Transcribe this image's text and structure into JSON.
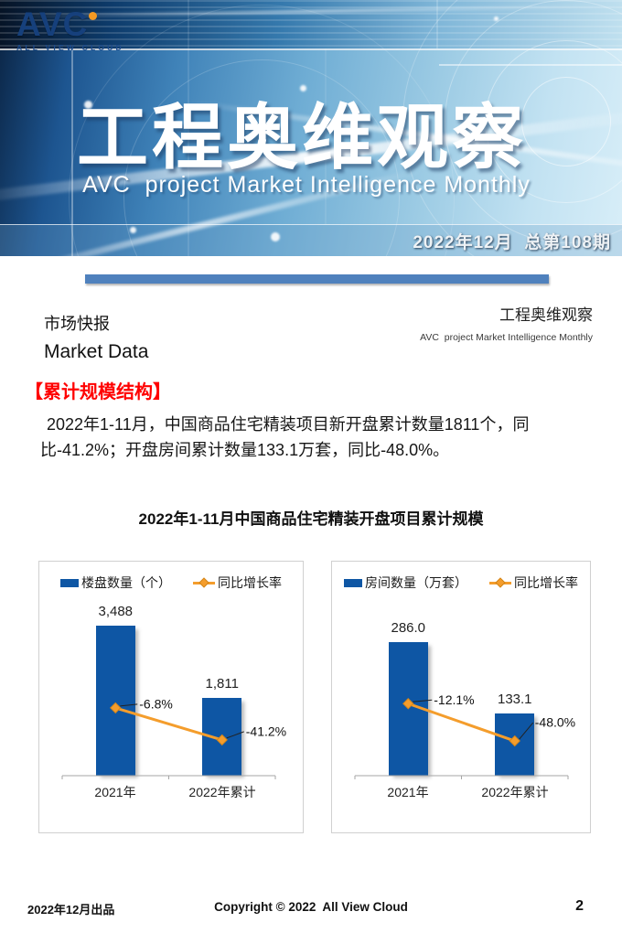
{
  "hero": {
    "logo_text": "AVC",
    "logo_sub": "ALL VIEW CLOUD",
    "title": "工程奥维观察",
    "subtitle": "AVC  project Market Intelligence Monthly",
    "issue": "2022年12月  总第108期"
  },
  "masthead": {
    "section_cn": "市场快报",
    "section_en": "Market Data",
    "brand_cn": "工程奥维观察",
    "brand_en": "AVC  project Market Intelligence Monthly"
  },
  "section_heading": "【累计规模结构】",
  "paragraph": "2022年1-11月，中国商品住宅精装项目新开盘累计数量1811个，同比-41.2%；开盘房间累计数量133.1万套，同比-48.0%。",
  "chart_title": "2022年1-11月中国商品住宅精装开盘项目累计规模",
  "chart_data": [
    {
      "type": "bar",
      "categories": [
        "2021年",
        "2022年累计"
      ],
      "series": [
        {
          "name": "楼盘数量（个）",
          "type": "bar",
          "values": [
            3488,
            1811
          ],
          "labels": [
            "3,488",
            "1,811"
          ],
          "color": "#0e56a4"
        },
        {
          "name": "同比增长率",
          "type": "line",
          "values": [
            -6.8,
            -41.2
          ],
          "labels": [
            "-6.8%",
            "-41.2%"
          ],
          "color": "#f49d2c"
        }
      ],
      "ylim": [
        0,
        3700
      ],
      "legend_position": "top",
      "grid": false
    },
    {
      "type": "bar",
      "categories": [
        "2021年",
        "2022年累计"
      ],
      "series": [
        {
          "name": "房间数量（万套）",
          "type": "bar",
          "values": [
            286.0,
            133.1
          ],
          "labels": [
            "286.0",
            "133.1"
          ],
          "color": "#0e56a4"
        },
        {
          "name": "同比增长率",
          "type": "line",
          "values": [
            -12.1,
            -48.0
          ],
          "labels": [
            "-12.1%",
            "-48.0%"
          ],
          "color": "#f49d2c"
        }
      ],
      "ylim": [
        0,
        340
      ],
      "legend_position": "top",
      "grid": false
    }
  ],
  "footer": {
    "left": "2022年12月出品",
    "center": "Copyright © 2022  All View Cloud",
    "page": "2"
  },
  "colors": {
    "bar_blue": "#0e56a4",
    "line_orange": "#f49d2c",
    "divider_blue": "#4f81bd",
    "heading_red": "#ff0000"
  }
}
